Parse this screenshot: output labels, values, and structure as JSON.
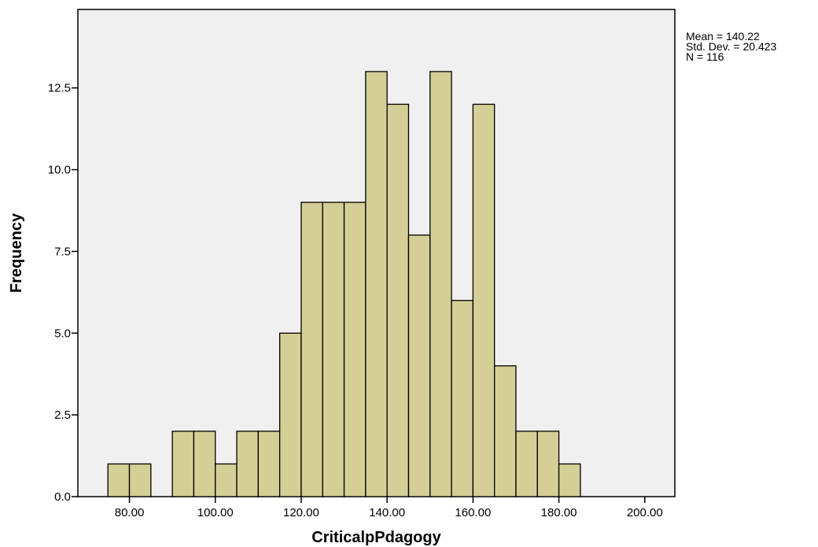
{
  "chart_data": {
    "type": "bar",
    "title": "",
    "xlabel": "CriticalpPdagogy",
    "ylabel": "Frequency",
    "bin_width": 5,
    "bins": [
      {
        "start": 75,
        "end": 80,
        "count": 1
      },
      {
        "start": 80,
        "end": 85,
        "count": 1
      },
      {
        "start": 90,
        "end": 95,
        "count": 2
      },
      {
        "start": 95,
        "end": 100,
        "count": 2
      },
      {
        "start": 100,
        "end": 105,
        "count": 1
      },
      {
        "start": 105,
        "end": 110,
        "count": 2
      },
      {
        "start": 110,
        "end": 115,
        "count": 2
      },
      {
        "start": 115,
        "end": 120,
        "count": 5
      },
      {
        "start": 120,
        "end": 125,
        "count": 9
      },
      {
        "start": 125,
        "end": 130,
        "count": 9
      },
      {
        "start": 130,
        "end": 135,
        "count": 9
      },
      {
        "start": 135,
        "end": 140,
        "count": 13
      },
      {
        "start": 140,
        "end": 145,
        "count": 12
      },
      {
        "start": 145,
        "end": 150,
        "count": 8
      },
      {
        "start": 150,
        "end": 155,
        "count": 13
      },
      {
        "start": 155,
        "end": 160,
        "count": 6
      },
      {
        "start": 160,
        "end": 165,
        "count": 12
      },
      {
        "start": 165,
        "end": 170,
        "count": 4
      },
      {
        "start": 170,
        "end": 175,
        "count": 2
      },
      {
        "start": 175,
        "end": 180,
        "count": 2
      },
      {
        "start": 180,
        "end": 185,
        "count": 1
      }
    ],
    "xlim": [
      68,
      207
    ],
    "ylim": [
      0,
      14.9
    ],
    "x_ticks": [
      80,
      100,
      120,
      140,
      160,
      180,
      200
    ],
    "x_tick_labels": [
      "80.00",
      "100.00",
      "120.00",
      "140.00",
      "160.00",
      "180.00",
      "200.00"
    ],
    "y_ticks": [
      0,
      2.5,
      5,
      7.5,
      10,
      12.5
    ],
    "y_tick_labels": [
      "0.0",
      "2.5",
      "5.0",
      "7.5",
      "10.0",
      "12.5"
    ],
    "grid": false,
    "colors": {
      "bar_fill": "#d4cf96",
      "plot_bg": "#f0f0f0",
      "stroke": "#000000"
    },
    "stats": {
      "mean": "Mean = 140.22",
      "std_dev": "Std. Dev. = 20.423",
      "n": "N = 116"
    }
  }
}
